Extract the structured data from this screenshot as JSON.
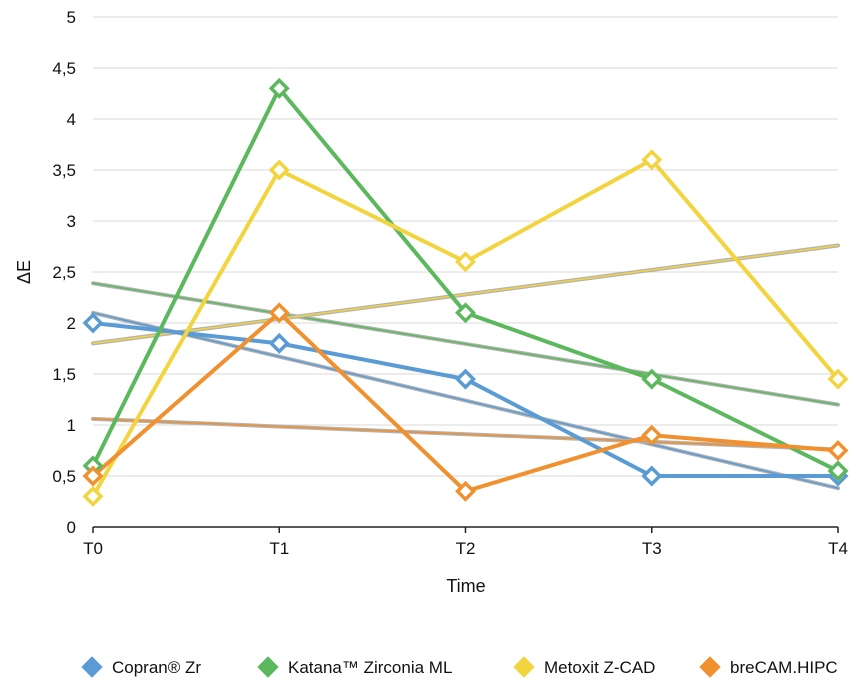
{
  "chart_data": {
    "type": "line",
    "title": "",
    "xlabel": "Time",
    "ylabel": "ΔE",
    "categories": [
      "T0",
      "T1",
      "T2",
      "T3",
      "T4"
    ],
    "ylim": [
      0,
      5
    ],
    "y_ticks": [
      0,
      0.5,
      1,
      1.5,
      2,
      2.5,
      3,
      3.5,
      4,
      4.5,
      5
    ],
    "y_tick_labels": [
      "0",
      "0,5",
      "1",
      "1,5",
      "2",
      "2,5",
      "3",
      "3,5",
      "4",
      "4,5",
      "5"
    ],
    "grid": true,
    "legend_position": "bottom",
    "marker": "diamond",
    "trendlines": true,
    "series": [
      {
        "name": "Copran® Zr",
        "color": "#5b9bd5",
        "values": [
          2.0,
          1.8,
          1.45,
          0.5,
          0.5
        ],
        "trend": [
          2.1,
          0.38
        ]
      },
      {
        "name": "Katana™ Zirconia ML",
        "color": "#5cb85c",
        "values": [
          0.6,
          4.3,
          2.1,
          1.45,
          0.55
        ],
        "trend": [
          2.39,
          1.2
        ]
      },
      {
        "name": "Metoxit Z-CAD",
        "color": "#f2d43f",
        "values": [
          0.3,
          3.5,
          2.6,
          3.6,
          1.45
        ],
        "trend": [
          1.8,
          2.76
        ]
      },
      {
        "name": "breCAM.HIPC",
        "color": "#f0902f",
        "values": [
          0.5,
          2.1,
          0.35,
          0.9,
          0.75
        ],
        "trend": [
          1.06,
          0.76
        ]
      }
    ]
  }
}
